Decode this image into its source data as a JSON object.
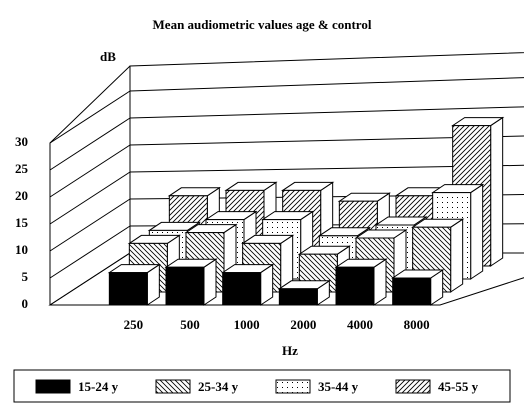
{
  "chart_data": {
    "type": "bar3d",
    "title": "Mean audiometric values age & control",
    "y_label": "dB",
    "x_label": "Hz",
    "categories": [
      "250",
      "500",
      "1000",
      "2000",
      "4000",
      "8000"
    ],
    "series": [
      {
        "name": "15-24 y",
        "color": "#000000",
        "pattern": "solid",
        "values": [
          6,
          7,
          6,
          3,
          7,
          5
        ]
      },
      {
        "name": "25-34 y",
        "color": "#000000",
        "pattern": "hatch-back",
        "values": [
          9,
          11,
          9,
          7,
          10,
          12
        ]
      },
      {
        "name": "35-44 y",
        "color": "#000000",
        "pattern": "dots",
        "values": [
          9,
          11,
          11,
          8,
          10,
          16
        ]
      },
      {
        "name": "45-55 y",
        "color": "#000000",
        "pattern": "hatch-forward",
        "values": [
          13,
          14,
          14,
          12,
          13,
          26
        ]
      }
    ],
    "ylim": [
      0,
      30
    ],
    "yticks": [
      0,
      5,
      10,
      15,
      20,
      25,
      30
    ],
    "grid": true,
    "legend": "bottom"
  }
}
